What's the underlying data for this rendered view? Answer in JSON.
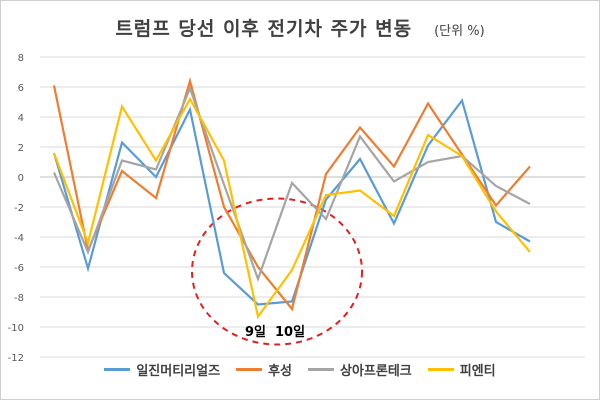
{
  "chart_data": {
    "type": "line",
    "title": "트럼프 당선 이후 전기차 주가 변동",
    "unit_label": "(단위 %)",
    "ylim": [
      -12,
      8
    ],
    "yticks": [
      -12,
      -10,
      -8,
      -6,
      -4,
      -2,
      0,
      2,
      4,
      6,
      8
    ],
    "grid": true,
    "legend_position": "bottom",
    "annotation": "9일  10일",
    "series": [
      {
        "name": "일진머티리얼즈",
        "color": "#5b9bd5",
        "values": [
          1.6,
          -6.1,
          2.3,
          0,
          4.5,
          -6.4,
          -8.5,
          -8.3,
          -1.5,
          1.2,
          -3.1,
          2.1,
          5.1,
          -3.0,
          -4.3
        ]
      },
      {
        "name": "후성",
        "color": "#ed7d31",
        "values": [
          6.1,
          -4.9,
          0.4,
          -1.4,
          6.4,
          -2.0,
          -6.0,
          -8.8,
          0.2,
          3.3,
          0.7,
          4.9,
          1.5,
          -1.9,
          0.7
        ]
      },
      {
        "name": "상아프론테크",
        "color": "#a5a5a5",
        "values": [
          0.3,
          -5.0,
          1.1,
          0.5,
          5.9,
          -0.5,
          -6.8,
          -0.4,
          -2.8,
          2.7,
          -0.3,
          1.0,
          1.4,
          -0.6,
          -1.8
        ]
      },
      {
        "name": "피엔티",
        "color": "#ffc000",
        "values": [
          1.6,
          -4.4,
          4.7,
          1.1,
          5.2,
          1.1,
          -9.3,
          -6.2,
          -1.2,
          -0.9,
          -2.6,
          2.8,
          1.4,
          -2.3,
          -5.0
        ]
      }
    ]
  }
}
